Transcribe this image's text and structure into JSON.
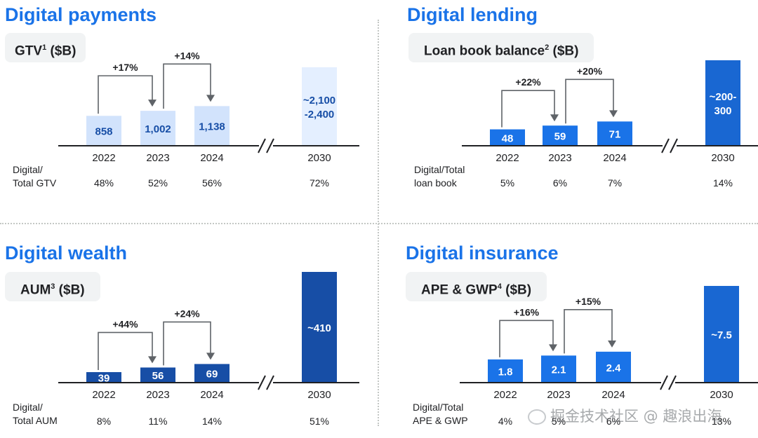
{
  "colors": {
    "title": "#1a73e8",
    "light_bar": "#d2e3fc",
    "light_bar_2030": "#e4efff",
    "mid_bar": "#1a73e8",
    "dark_bar": "#174ea6",
    "light_text": "#174ea6",
    "axis": "#202124"
  },
  "panels": {
    "payments": {
      "title": "Digital payments",
      "metric": "GTV",
      "sup": "1",
      "unit": " ($B)"
    },
    "lending": {
      "title": "Digital lending",
      "metric": "Loan book balance",
      "sup": "2",
      "unit": " ($B)"
    },
    "wealth": {
      "title": "Digital wealth",
      "metric": "AUM",
      "sup": "3",
      "unit": " ($B)"
    },
    "insurance": {
      "title": "Digital insurance",
      "metric": "APE & GWP",
      "sup": "4",
      "unit": " ($B)"
    }
  },
  "watermark": "掘金技术社区 @ 趣浪出海",
  "chart_data": [
    {
      "id": "payments",
      "type": "bar",
      "title": "Digital payments",
      "ylabel": "GTV ($B)",
      "categories": [
        "2022",
        "2023",
        "2024",
        "2030"
      ],
      "values": [
        858,
        1002,
        1138,
        2250
      ],
      "value_labels": [
        "858",
        "1,002",
        "1,138",
        "~2,100\n-2,400"
      ],
      "growth": [
        {
          "from": 0,
          "to": 1,
          "label": "+17%"
        },
        {
          "from": 1,
          "to": 2,
          "label": "+14%"
        }
      ],
      "share_label": "Digital/\nTotal GTV",
      "shares": [
        "48%",
        "52%",
        "56%",
        "72%"
      ],
      "style": "light"
    },
    {
      "id": "lending",
      "type": "bar",
      "title": "Digital lending",
      "ylabel": "Loan book balance ($B)",
      "categories": [
        "2022",
        "2023",
        "2024",
        "2030"
      ],
      "values": [
        48,
        59,
        71,
        250
      ],
      "value_labels": [
        "48",
        "59",
        "71",
        "~200-\n300"
      ],
      "growth": [
        {
          "from": 0,
          "to": 1,
          "label": "+22%"
        },
        {
          "from": 1,
          "to": 2,
          "label": "+20%"
        }
      ],
      "share_label": "Digital/Total\nloan book",
      "shares": [
        "5%",
        "6%",
        "7%",
        "14%"
      ],
      "style": "mid"
    },
    {
      "id": "wealth",
      "type": "bar",
      "title": "Digital wealth",
      "ylabel": "AUM ($B)",
      "categories": [
        "2022",
        "2023",
        "2024",
        "2030"
      ],
      "values": [
        39,
        56,
        69,
        410
      ],
      "value_labels": [
        "39",
        "56",
        "69",
        "~410"
      ],
      "growth": [
        {
          "from": 0,
          "to": 1,
          "label": "+44%"
        },
        {
          "from": 1,
          "to": 2,
          "label": "+24%"
        }
      ],
      "share_label": "Digital/\nTotal AUM",
      "shares": [
        "8%",
        "11%",
        "14%",
        "51%"
      ],
      "style": "dark"
    },
    {
      "id": "insurance",
      "type": "bar",
      "title": "Digital insurance",
      "ylabel": "APE & GWP ($B)",
      "categories": [
        "2022",
        "2023",
        "2024",
        "2030"
      ],
      "values": [
        1.8,
        2.1,
        2.4,
        7.5
      ],
      "value_labels": [
        "1.8",
        "2.1",
        "2.4",
        "~7.5"
      ],
      "growth": [
        {
          "from": 0,
          "to": 1,
          "label": "+16%"
        },
        {
          "from": 1,
          "to": 2,
          "label": "+15%"
        }
      ],
      "share_label": "Digital/Total\nAPE & GWP",
      "shares": [
        "4%",
        "5%",
        "6%",
        "13%"
      ],
      "style": "mid"
    }
  ]
}
